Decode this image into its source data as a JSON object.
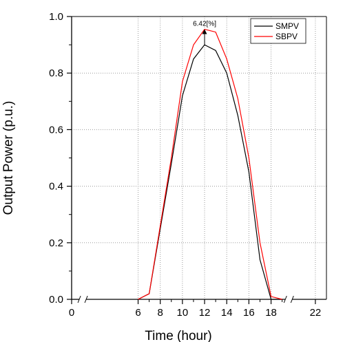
{
  "chart_data": {
    "type": "line",
    "title": "",
    "xlabel": "Time (hour)",
    "ylabel": "Output Power (p.u.)",
    "xlim": [
      0,
      23
    ],
    "ylim": [
      0,
      1.0
    ],
    "x_axis_break": true,
    "x_ticks": [
      0,
      6,
      8,
      10,
      12,
      14,
      16,
      18,
      22
    ],
    "x_tick_labels": [
      "0",
      "6",
      "8",
      "10",
      "12",
      "14",
      "16",
      "18",
      "22"
    ],
    "y_ticks": [
      0.0,
      0.2,
      0.4,
      0.6,
      0.8,
      1.0
    ],
    "y_tick_labels": [
      "0.0",
      "0.2",
      "0.4",
      "0.6",
      "0.8",
      "1.0"
    ],
    "grid": true,
    "legend_position": "top-right",
    "x": [
      6,
      7,
      8,
      9,
      10,
      11,
      12,
      13,
      14,
      15,
      16,
      17,
      18,
      19
    ],
    "series": [
      {
        "name": "SMPV",
        "color": "#000000",
        "values": [
          0.0,
          0.02,
          0.25,
          0.48,
          0.72,
          0.85,
          0.9,
          0.88,
          0.8,
          0.65,
          0.45,
          0.14,
          0.0,
          0.0
        ]
      },
      {
        "name": "SBPV",
        "color": "#ff0000",
        "values": [
          0.0,
          0.02,
          0.26,
          0.5,
          0.77,
          0.9,
          0.955,
          0.945,
          0.85,
          0.71,
          0.5,
          0.2,
          0.01,
          0.0
        ]
      }
    ],
    "annotation": {
      "text": "6.42[%]",
      "x": 12,
      "y_from": 0.9,
      "y_to": 0.955
    }
  }
}
